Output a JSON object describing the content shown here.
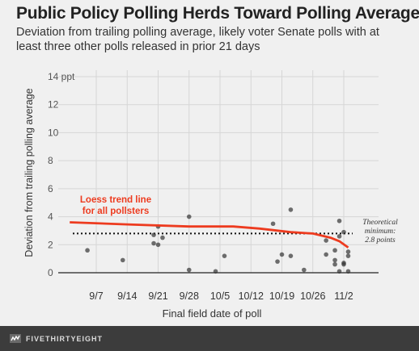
{
  "title": "Public Policy Polling Herds Toward Polling Average",
  "subtitle": "Deviation from trailing polling average, likely voter Senate polls with at least three other polls released in prior 21 days",
  "footer": {
    "brand": "FIVETHIRTYEIGHT",
    "logo_icon": "fivethirtyeight-logo-icon"
  },
  "chart_data": {
    "type": "scatter",
    "xlabel": "Final field date of poll",
    "ylabel": "Deviation from trailing polling average",
    "x_ticks": [
      "9/7",
      "9/14",
      "9/21",
      "9/28",
      "10/5",
      "10/12",
      "10/19",
      "10/26",
      "11/2"
    ],
    "y_ticks": [
      "0",
      "2",
      "4",
      "6",
      "8",
      "10",
      "12",
      "14 ppt"
    ],
    "ylim": [
      0,
      14
    ],
    "grid": true,
    "points": [
      {
        "x": "9/5",
        "y": 1.6
      },
      {
        "x": "9/13",
        "y": 0.9
      },
      {
        "x": "9/20",
        "y": 2.1
      },
      {
        "x": "9/20",
        "y": 2.7
      },
      {
        "x": "9/21",
        "y": 3.3
      },
      {
        "x": "9/21",
        "y": 2.0
      },
      {
        "x": "9/22",
        "y": 2.5
      },
      {
        "x": "9/28",
        "y": 4.0
      },
      {
        "x": "9/28",
        "y": 0.2
      },
      {
        "x": "10/4",
        "y": 0.1
      },
      {
        "x": "10/6",
        "y": 1.2
      },
      {
        "x": "10/17",
        "y": 3.5
      },
      {
        "x": "10/18",
        "y": 0.8
      },
      {
        "x": "10/19",
        "y": 1.3
      },
      {
        "x": "10/21",
        "y": 4.5
      },
      {
        "x": "10/21",
        "y": 1.2
      },
      {
        "x": "10/24",
        "y": 0.2
      },
      {
        "x": "10/29",
        "y": 2.3
      },
      {
        "x": "10/29",
        "y": 1.3
      },
      {
        "x": "10/31",
        "y": 1.6
      },
      {
        "x": "10/31",
        "y": 0.9
      },
      {
        "x": "10/31",
        "y": 0.6
      },
      {
        "x": "11/1",
        "y": 3.7
      },
      {
        "x": "11/1",
        "y": 2.6
      },
      {
        "x": "11/1",
        "y": 0.1
      },
      {
        "x": "11/2",
        "y": 2.9
      },
      {
        "x": "11/2",
        "y": 0.7
      },
      {
        "x": "11/2",
        "y": 0.6
      },
      {
        "x": "11/3",
        "y": 1.5
      },
      {
        "x": "11/3",
        "y": 1.2
      },
      {
        "x": "11/3",
        "y": 0.1
      }
    ],
    "trend": {
      "label": [
        "Loess trend line",
        "for all pollsters"
      ],
      "color": "#ed3b1f",
      "points": [
        {
          "x": "9/1",
          "y": 3.6
        },
        {
          "x": "9/14",
          "y": 3.45
        },
        {
          "x": "9/28",
          "y": 3.3
        },
        {
          "x": "10/8",
          "y": 3.3
        },
        {
          "x": "10/14",
          "y": 3.15
        },
        {
          "x": "10/21",
          "y": 2.9
        },
        {
          "x": "10/26",
          "y": 2.8
        },
        {
          "x": "10/30",
          "y": 2.5
        },
        {
          "x": "11/1",
          "y": 2.25
        },
        {
          "x": "11/3",
          "y": 1.8
        }
      ]
    },
    "reference_line": {
      "y": 2.8,
      "label": [
        "Theoretical",
        "minimum:",
        "2.8 points"
      ]
    },
    "colors": {
      "points": "#333333",
      "grid": "#d6d6d6",
      "zero_line": "#222222",
      "reference": "#111111"
    }
  }
}
